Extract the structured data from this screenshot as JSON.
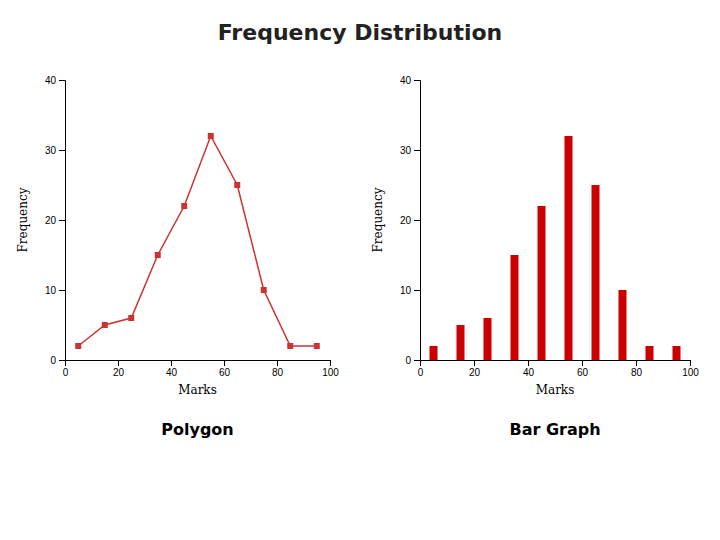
{
  "title": "Frequency Distribution",
  "chart_data": [
    {
      "type": "line",
      "title": "Polygon",
      "x": [
        5,
        15,
        25,
        35,
        45,
        55,
        65,
        75,
        85,
        95
      ],
      "values": [
        2,
        5,
        6,
        15,
        22,
        32,
        25,
        10,
        2,
        2
      ],
      "xlabel": "Marks",
      "ylabel": "Frequency",
      "xlim": [
        0,
        100
      ],
      "ylim": [
        0,
        40
      ],
      "xticks": [
        0,
        20,
        40,
        60,
        80,
        100
      ],
      "yticks": [
        0,
        10,
        20,
        30,
        40
      ],
      "color": "#cc3333",
      "marker": "square",
      "grid": false
    },
    {
      "type": "bar",
      "title": "Bar Graph",
      "x": [
        5,
        15,
        25,
        35,
        45,
        55,
        65,
        75,
        85,
        95
      ],
      "values": [
        2,
        5,
        6,
        15,
        22,
        32,
        25,
        10,
        2,
        2
      ],
      "xlabel": "Marks",
      "ylabel": "Frequency",
      "xlim": [
        0,
        100
      ],
      "ylim": [
        0,
        40
      ],
      "xticks": [
        0,
        20,
        40,
        60,
        80,
        100
      ],
      "yticks": [
        0,
        10,
        20,
        30,
        40
      ],
      "color": "#cc0000",
      "grid": false
    }
  ]
}
